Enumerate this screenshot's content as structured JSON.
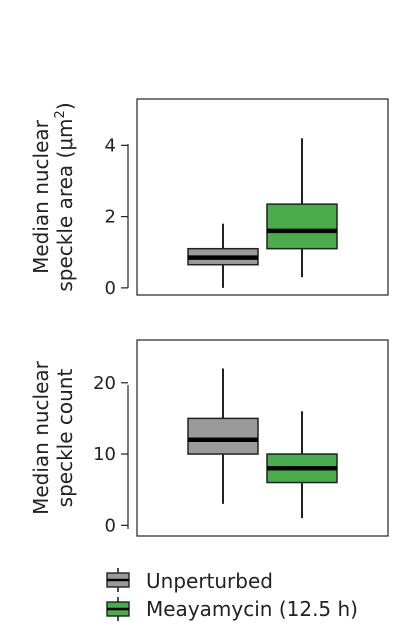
{
  "chart_data": [
    {
      "type": "boxplot",
      "ylabel_lines": [
        "Median nuclear",
        "speckle area (μm"
      ],
      "ylabel_sup": "2",
      "ylabel_close": ")",
      "ylim": [
        -0.2,
        5.3
      ],
      "yticks": [
        0,
        2,
        4
      ],
      "series": [
        {
          "name": "Unperturbed",
          "color": "#9a9a9a",
          "min": 0.0,
          "q1": 0.65,
          "median": 0.85,
          "q3": 1.1,
          "max": 1.8
        },
        {
          "name": "Meayamycin (12.5 h)",
          "color": "#4aac4a",
          "min": 0.3,
          "q1": 1.1,
          "median": 1.6,
          "q3": 2.35,
          "max": 4.2
        }
      ]
    },
    {
      "type": "boxplot",
      "ylabel_lines": [
        "Median nuclear",
        "speckle count"
      ],
      "ylim": [
        -1.5,
        26
      ],
      "yticks": [
        0,
        10,
        20
      ],
      "series": [
        {
          "name": "Unperturbed",
          "color": "#9a9a9a",
          "min": 3,
          "q1": 10,
          "median": 12,
          "q3": 15,
          "max": 22
        },
        {
          "name": "Meayamycin (12.5 h)",
          "color": "#4aac4a",
          "min": 1,
          "q1": 6,
          "median": 8,
          "q3": 10,
          "max": 16
        }
      ]
    }
  ],
  "legend": {
    "items": [
      {
        "label": "Unperturbed",
        "color": "#9a9a9a"
      },
      {
        "label": "Meayamycin (12.5 h)",
        "color": "#4aac4a"
      }
    ]
  }
}
